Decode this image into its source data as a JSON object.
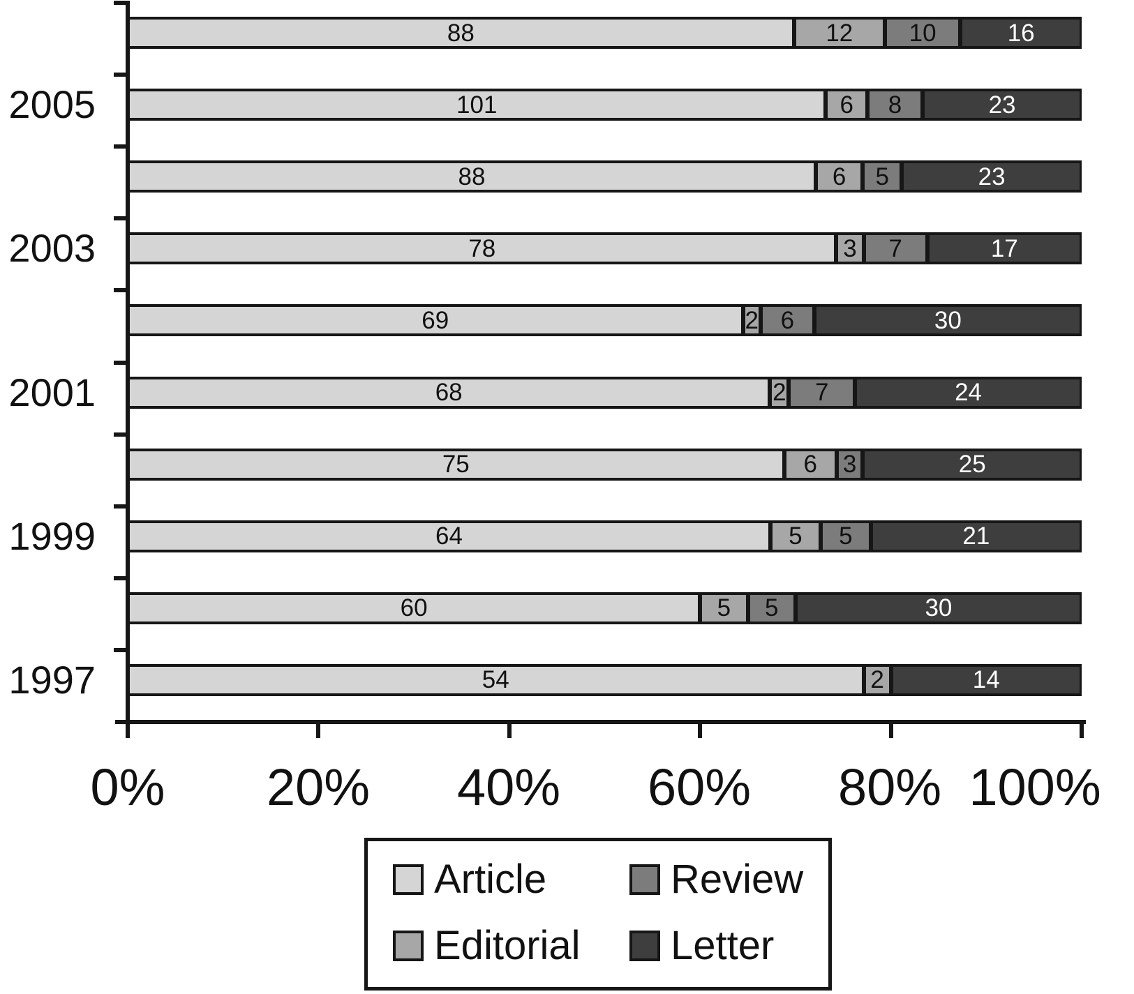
{
  "chart_data": {
    "type": "bar",
    "subtype": "horizontal_stacked_100_percent",
    "title": "",
    "xlabel": "",
    "ylabel": "",
    "grid": false,
    "series_order": [
      "article",
      "editorial",
      "review",
      "letter"
    ],
    "colors": {
      "article": "#d5d5d5",
      "editorial": "#a7a7a7",
      "review": "#7c7c7c",
      "letter": "#3e3e3e"
    },
    "value_label_colors": {
      "article": "#111111",
      "editorial": "#111111",
      "review": "#111111",
      "letter": "#ffffff"
    },
    "rows": [
      {
        "year_label": "",
        "article": 88,
        "editorial": 12,
        "review": 10,
        "letter": 16
      },
      {
        "year_label": "2005",
        "article": 101,
        "editorial": 6,
        "review": 8,
        "letter": 23
      },
      {
        "year_label": "",
        "article": 88,
        "editorial": 6,
        "review": 5,
        "letter": 23
      },
      {
        "year_label": "2003",
        "article": 78,
        "editorial": 3,
        "review": 7,
        "letter": 17
      },
      {
        "year_label": "",
        "article": 69,
        "editorial": 2,
        "review": 6,
        "letter": 30
      },
      {
        "year_label": "2001",
        "article": 68,
        "editorial": 2,
        "review": 7,
        "letter": 24
      },
      {
        "year_label": "",
        "article": 75,
        "editorial": 6,
        "review": 3,
        "letter": 25
      },
      {
        "year_label": "1999",
        "article": 64,
        "editorial": 5,
        "review": 5,
        "letter": 21
      },
      {
        "year_label": "",
        "article": 60,
        "editorial": 5,
        "review": 5,
        "letter": 30
      },
      {
        "year_label": "1997",
        "article": 54,
        "editorial": 2,
        "review": 0,
        "letter": 14
      }
    ],
    "x_axis": {
      "range": [
        0,
        100
      ],
      "tick_labels": [
        "0%",
        "20%",
        "40%",
        "60%",
        "80%",
        "100%"
      ]
    },
    "y_axis": {
      "visible_year_labels": [
        "2005",
        "2003",
        "2001",
        "1999",
        "1997"
      ]
    },
    "legend": [
      {
        "key": "article",
        "label": "Article"
      },
      {
        "key": "review",
        "label": "Review"
      },
      {
        "key": "editorial",
        "label": "Editorial"
      },
      {
        "key": "letter",
        "label": "Letter"
      }
    ],
    "legend_position": "bottom-center"
  }
}
